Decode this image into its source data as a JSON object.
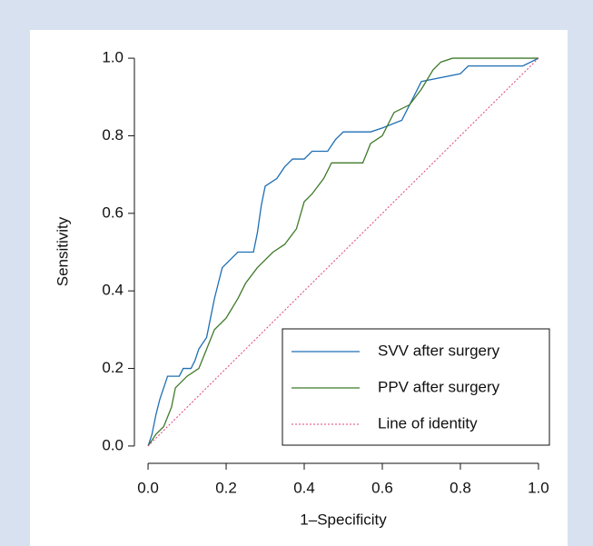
{
  "chart_data": {
    "type": "line",
    "xlabel": "1–Specificity",
    "ylabel": "Sensitivity",
    "xlim": [
      -0.035,
      1.035
    ],
    "ylim": [
      -0.04,
      1.04
    ],
    "xticks": [
      {
        "value": 0,
        "label": "0.0"
      },
      {
        "value": 0.2,
        "label": "0.2"
      },
      {
        "value": 0.4,
        "label": "0.4"
      },
      {
        "value": 0.6,
        "label": "0.6"
      },
      {
        "value": 0.8,
        "label": "0.8"
      },
      {
        "value": 1,
        "label": "1.0"
      }
    ],
    "yticks": [
      {
        "value": 0,
        "label": "0.0"
      },
      {
        "value": 0.2,
        "label": "0.2"
      },
      {
        "value": 0.4,
        "label": "0.4"
      },
      {
        "value": 0.6,
        "label": "0.6"
      },
      {
        "value": 0.8,
        "label": "0.8"
      },
      {
        "value": 1,
        "label": "1.0"
      }
    ],
    "legend": "bottom-right",
    "series": [
      {
        "name": "SVV after surgery",
        "color": "#1f6fb4",
        "style": "solid",
        "x": [
          0,
          0.01,
          0.02,
          0.03,
          0.04,
          0.05,
          0.08,
          0.09,
          0.11,
          0.12,
          0.13,
          0.15,
          0.16,
          0.17,
          0.18,
          0.19,
          0.21,
          0.23,
          0.27,
          0.28,
          0.29,
          0.3,
          0.33,
          0.35,
          0.37,
          0.4,
          0.42,
          0.46,
          0.48,
          0.5,
          0.57,
          0.6,
          0.65,
          0.67,
          0.7,
          0.8,
          0.82,
          0.96,
          1
        ],
        "values": [
          0,
          0.03,
          0.08,
          0.12,
          0.15,
          0.18,
          0.18,
          0.2,
          0.2,
          0.22,
          0.25,
          0.28,
          0.33,
          0.38,
          0.42,
          0.46,
          0.48,
          0.5,
          0.5,
          0.55,
          0.62,
          0.67,
          0.69,
          0.72,
          0.74,
          0.74,
          0.76,
          0.76,
          0.79,
          0.81,
          0.81,
          0.82,
          0.84,
          0.88,
          0.94,
          0.96,
          0.98,
          0.98,
          1
        ]
      },
      {
        "name": "PPV after surgery",
        "color": "#3f7a2a",
        "style": "solid",
        "x": [
          0,
          0.02,
          0.04,
          0.06,
          0.07,
          0.1,
          0.13,
          0.15,
          0.17,
          0.2,
          0.23,
          0.25,
          0.28,
          0.32,
          0.35,
          0.38,
          0.4,
          0.42,
          0.45,
          0.47,
          0.55,
          0.57,
          0.6,
          0.63,
          0.67,
          0.7,
          0.73,
          0.75,
          0.78,
          1
        ],
        "values": [
          0,
          0.03,
          0.05,
          0.1,
          0.15,
          0.18,
          0.2,
          0.25,
          0.3,
          0.33,
          0.38,
          0.42,
          0.46,
          0.5,
          0.52,
          0.56,
          0.63,
          0.65,
          0.69,
          0.73,
          0.73,
          0.78,
          0.8,
          0.86,
          0.88,
          0.92,
          0.97,
          0.99,
          1,
          1
        ]
      },
      {
        "name": "Line of identity",
        "color": "#e0407f",
        "style": "dotted",
        "x": [
          0,
          1
        ],
        "values": [
          0,
          1
        ]
      }
    ]
  }
}
